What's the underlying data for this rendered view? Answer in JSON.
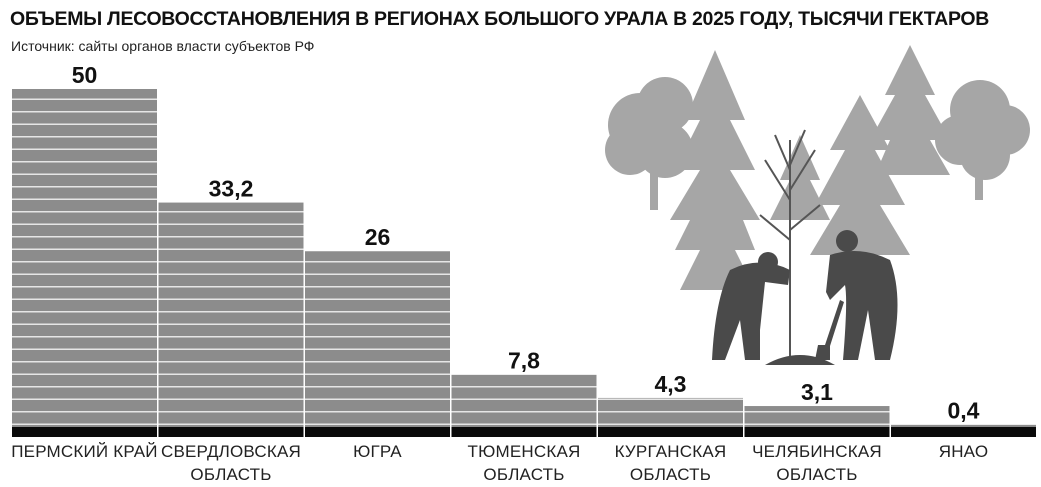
{
  "chart_data": {
    "type": "bar",
    "title": "ОБЪЕМЫ ЛЕСОВОССТАНОВЛЕНИЯ В РЕГИОНАХ БОЛЬШОГО УРАЛА В 2025 ГОДУ, ТЫСЯЧИ ГЕКТАРОВ",
    "subtitle": "Источник: сайты органов власти субъектов РФ",
    "categories": [
      "ПЕРМСКИЙ КРАЙ",
      "СВЕРДЛОВСКАЯ ОБЛАСТЬ",
      "ЮГРА",
      "ТЮМЕНСКАЯ ОБЛАСТЬ",
      "КУРГАНСКАЯ ОБЛАСТЬ",
      "ЧЕЛЯБИНСКАЯ ОБЛАСТЬ",
      "ЯНАО"
    ],
    "values": [
      50,
      33.2,
      26,
      7.8,
      4.3,
      3.1,
      0.4
    ],
    "value_labels": [
      "50",
      "33,2",
      "26",
      "7,8",
      "4,3",
      "3,1",
      "0,4"
    ],
    "color": "#8c8c8c"
  }
}
